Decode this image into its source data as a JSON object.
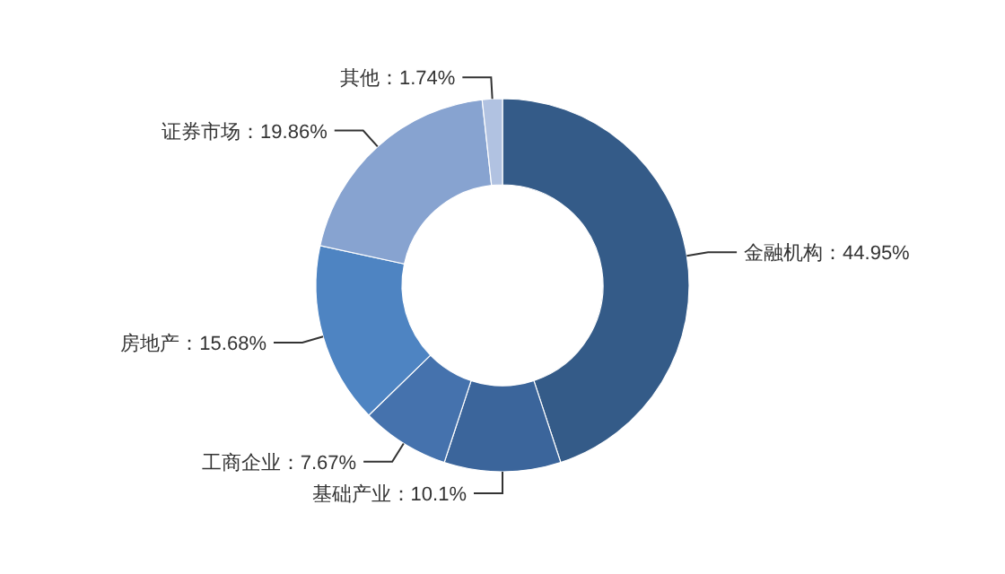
{
  "chart_data": {
    "type": "donut",
    "categories": [
      "金融机构",
      "基础产业",
      "工商企业",
      "房地产",
      "证券市场",
      "其他"
    ],
    "values": [
      44.95,
      10.1,
      7.67,
      15.68,
      19.86,
      1.74
    ],
    "colors": [
      "#345b88",
      "#3b659b",
      "#4572ad",
      "#4e84c2",
      "#87a3d0",
      "#b1c2e1"
    ],
    "value_labels": [
      "：44.95%",
      "：10.1%",
      "：7.67%",
      "：15.68%",
      "：19.86%",
      "：1.74%"
    ]
  }
}
